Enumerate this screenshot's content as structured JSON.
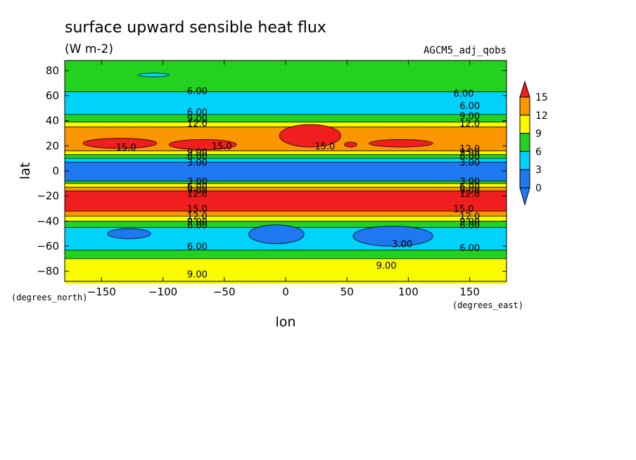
{
  "chart_data": {
    "type": "contour",
    "title": "surface upward sensible heat flux",
    "units": "(W m-2)",
    "dataset": "AGCM5_adj_qobs",
    "xlabel": "lon",
    "ylabel": "lat",
    "x_units": "(degrees_east)",
    "y_units": "(degrees_north)",
    "xlim": [
      -180,
      180
    ],
    "ylim": [
      -90,
      90
    ],
    "xticks": [
      -150,
      -100,
      -50,
      0,
      50,
      100,
      150
    ],
    "yticks": [
      -80,
      -60,
      -40,
      -20,
      0,
      20,
      40,
      60,
      80
    ],
    "colorbar": {
      "ticks": [
        0,
        3,
        6,
        9,
        12,
        15
      ],
      "colors": [
        "#1e78f0",
        "#00d2fa",
        "#22d21e",
        "#fafa00",
        "#fa9600",
        "#f01e1e"
      ],
      "extend": "both"
    },
    "lat_bands": [
      {
        "lat": [
          -90,
          -70
        ],
        "value": 9
      },
      {
        "lat": [
          -70,
          -63
        ],
        "value": 6
      },
      {
        "lat": [
          -63,
          -45
        ],
        "value": 3
      },
      {
        "lat": [
          -45,
          -40
        ],
        "value": 6
      },
      {
        "lat": [
          -40,
          -36
        ],
        "value": 9
      },
      {
        "lat": [
          -36,
          -32
        ],
        "value": 12
      },
      {
        "lat": [
          -32,
          -16
        ],
        "value": 15
      },
      {
        "lat": [
          -16,
          -13
        ],
        "value": 12
      },
      {
        "lat": [
          -13,
          -10
        ],
        "value": 9
      },
      {
        "lat": [
          -10,
          -8
        ],
        "value": 6
      },
      {
        "lat": [
          -8,
          7
        ],
        "value": 1
      },
      {
        "lat": [
          7,
          10
        ],
        "value": 3
      },
      {
        "lat": [
          10,
          13
        ],
        "value": 6
      },
      {
        "lat": [
          13,
          16
        ],
        "value": 9
      },
      {
        "lat": [
          16,
          35
        ],
        "value": 12
      },
      {
        "lat": [
          35,
          39
        ],
        "value": 9
      },
      {
        "lat": [
          39,
          45
        ],
        "value": 6
      },
      {
        "lat": [
          45,
          63
        ],
        "value": 3
      },
      {
        "lat": [
          63,
          88
        ],
        "value": 6
      }
    ],
    "patches": [
      {
        "lon": [
          -165,
          -105
        ],
        "lat": [
          18,
          26
        ],
        "value": 15
      },
      {
        "lon": [
          -95,
          -40
        ],
        "lat": [
          17,
          25
        ],
        "value": 15
      },
      {
        "lon": [
          -5,
          45
        ],
        "lat": [
          19,
          37
        ],
        "value": 15
      },
      {
        "lon": [
          48,
          58
        ],
        "lat": [
          19,
          23
        ],
        "value": 15
      },
      {
        "lon": [
          68,
          120
        ],
        "lat": [
          19,
          25
        ],
        "value": 15
      },
      {
        "lon": [
          -30,
          15
        ],
        "lat": [
          -58,
          -43
        ],
        "value": 1
      },
      {
        "lon": [
          55,
          120
        ],
        "lat": [
          -60,
          -44
        ],
        "value": 1
      },
      {
        "lon": [
          -145,
          -110
        ],
        "lat": [
          -54,
          -46
        ],
        "value": 1
      },
      {
        "lon": [
          -120,
          -95
        ],
        "lat": [
          75,
          78
        ],
        "value": 3
      }
    ],
    "contour_labels": [
      {
        "text": "6.00",
        "lon": -72,
        "lat": 64
      },
      {
        "text": "6.00",
        "lon": 145,
        "lat": 62
      },
      {
        "text": "6.00",
        "lon": 150,
        "lat": 52
      },
      {
        "text": "6.00",
        "lon": -72,
        "lat": 47
      },
      {
        "text": "9.00",
        "lon": -72,
        "lat": 42
      },
      {
        "text": "9.00",
        "lon": 150,
        "lat": 44
      },
      {
        "text": "12.0",
        "lon": -72,
        "lat": 38
      },
      {
        "text": "12.0",
        "lon": 150,
        "lat": 38
      },
      {
        "text": "15.0",
        "lon": -130,
        "lat": 19
      },
      {
        "text": "15.0",
        "lon": -52,
        "lat": 20
      },
      {
        "text": "15.0",
        "lon": 32,
        "lat": 20
      },
      {
        "text": "12.0",
        "lon": 150,
        "lat": 18
      },
      {
        "text": "9.00",
        "lon": -72,
        "lat": 15
      },
      {
        "text": "6.00",
        "lon": -72,
        "lat": 12
      },
      {
        "text": "9.00",
        "lon": 150,
        "lat": 15
      },
      {
        "text": "6.00",
        "lon": 150,
        "lat": 12
      },
      {
        "text": "3.00",
        "lon": -72,
        "lat": 7
      },
      {
        "text": "3.00",
        "lon": 150,
        "lat": 7
      },
      {
        "text": "3.00",
        "lon": -72,
        "lat": -8
      },
      {
        "text": "3.00",
        "lon": 150,
        "lat": -8
      },
      {
        "text": "6.00",
        "lon": -72,
        "lat": -12
      },
      {
        "text": "9.00",
        "lon": -72,
        "lat": -15
      },
      {
        "text": "12.0",
        "lon": -72,
        "lat": -18
      },
      {
        "text": "6.00",
        "lon": 150,
        "lat": -12
      },
      {
        "text": "9.00",
        "lon": 150,
        "lat": -15
      },
      {
        "text": "12.0",
        "lon": 150,
        "lat": -18
      },
      {
        "text": "15.0",
        "lon": -72,
        "lat": -30
      },
      {
        "text": "15.0",
        "lon": 145,
        "lat": -30
      },
      {
        "text": "12.0",
        "lon": -72,
        "lat": -36
      },
      {
        "text": "9.00",
        "lon": -72,
        "lat": -40
      },
      {
        "text": "6.00",
        "lon": -72,
        "lat": -43
      },
      {
        "text": "12.0",
        "lon": 150,
        "lat": -36
      },
      {
        "text": "9.00",
        "lon": 150,
        "lat": -40
      },
      {
        "text": "6.00",
        "lon": 150,
        "lat": -43
      },
      {
        "text": "3.00",
        "lon": 95,
        "lat": -58
      },
      {
        "text": "6.00",
        "lon": -72,
        "lat": -60
      },
      {
        "text": "6.00",
        "lon": 150,
        "lat": -61
      },
      {
        "text": "9.00",
        "lon": -72,
        "lat": -82
      },
      {
        "text": "9.00",
        "lon": 82,
        "lat": -75
      }
    ]
  }
}
